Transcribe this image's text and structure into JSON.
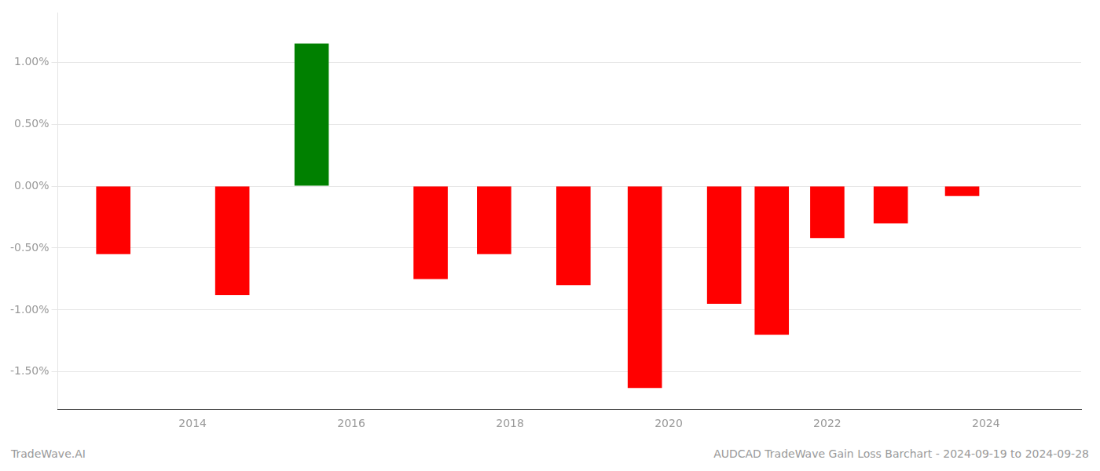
{
  "chart_data": {
    "type": "bar",
    "x": [
      2013,
      2014.5,
      2015.5,
      2017,
      2017.8,
      2018.8,
      2019.7,
      2020.7,
      2021.3,
      2022,
      2022.8,
      2023.7
    ],
    "values": [
      -0.55,
      -0.88,
      1.15,
      -0.75,
      -0.55,
      -0.8,
      -1.63,
      -0.95,
      -1.2,
      -0.42,
      -0.3,
      -0.08
    ],
    "colors": [
      "#FF0000",
      "#FF0000",
      "#008000",
      "#FF0000",
      "#FF0000",
      "#FF0000",
      "#FF0000",
      "#FF0000",
      "#FF0000",
      "#FF0000",
      "#FF0000",
      "#FF0000"
    ],
    "xlim": [
      2012.3,
      2025.2
    ],
    "xticks": [
      2014,
      2016,
      2018,
      2020,
      2022,
      2024
    ],
    "ylim": [
      -1.8,
      1.4
    ],
    "yticks": [
      {
        "value": -1.5,
        "label": "-1.50%"
      },
      {
        "value": -1.0,
        "label": "-1.00%"
      },
      {
        "value": -0.5,
        "label": "-0.50%"
      },
      {
        "value": 0.0,
        "label": "0.00%"
      },
      {
        "value": 0.5,
        "label": "0.50%"
      },
      {
        "value": 1.0,
        "label": "1.00%"
      }
    ],
    "grid": true,
    "annotations": [
      "TradeWave.AI",
      "AUDCAD TradeWave Gain Loss Barchart - 2024-09-19 to 2024-09-28"
    ]
  }
}
